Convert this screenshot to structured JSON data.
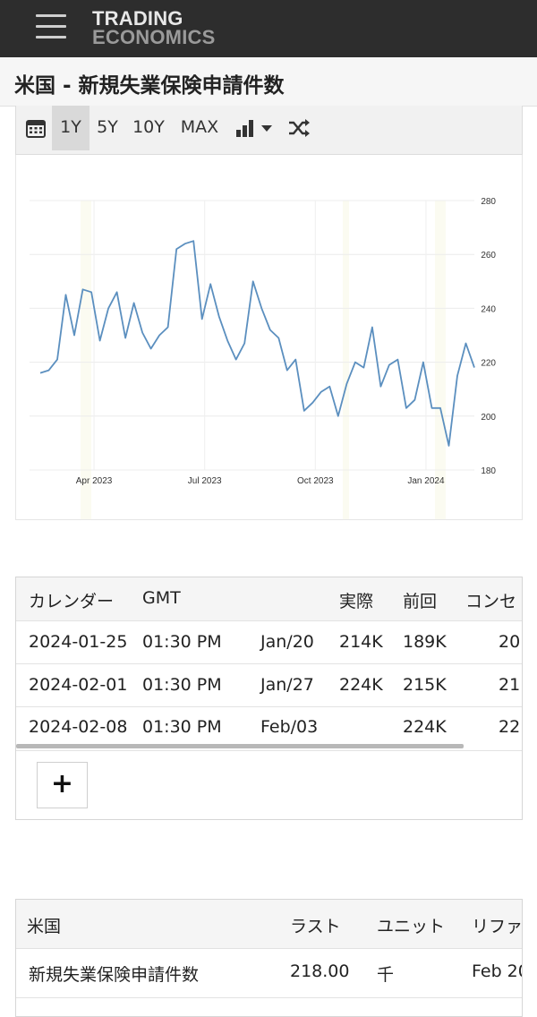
{
  "logo": {
    "line1": "TRADING",
    "line2": "ECONOMICS"
  },
  "page": {
    "title": "米国 - 新規失業保険申請件数"
  },
  "toolbar": {
    "ranges": [
      "1Y",
      "5Y",
      "10Y",
      "MAX"
    ],
    "active": "1Y"
  },
  "chart_data": {
    "type": "line",
    "title": "",
    "xlabel": "",
    "ylabel": "",
    "ylim": [
      180,
      280
    ],
    "yticks": [
      180,
      200,
      220,
      240,
      260,
      280
    ],
    "xticks": [
      "Apr 2023",
      "Jul 2023",
      "Oct 2023",
      "Jan 2024"
    ],
    "line_color": "#5b8fbf",
    "series": [
      {
        "name": "新規失業保険申請件数",
        "values": [
          216,
          217,
          221,
          245,
          230,
          247,
          246,
          228,
          240,
          246,
          229,
          242,
          231,
          225,
          230,
          233,
          262,
          264,
          265,
          236,
          249,
          237,
          228,
          221,
          227,
          250,
          240,
          232,
          229,
          217,
          221,
          202,
          205,
          209,
          211,
          200,
          212,
          220,
          218,
          233,
          211,
          219,
          221,
          203,
          206,
          220,
          203,
          203,
          189,
          215,
          227,
          218
        ]
      }
    ]
  },
  "calendar": {
    "headers": [
      "カレンダー",
      "GMT",
      "",
      "実際",
      "前回",
      "コンセ"
    ],
    "rows": [
      [
        "2024-01-25",
        "01:30 PM",
        "Jan/20",
        "214K",
        "189K",
        "20"
      ],
      [
        "2024-02-01",
        "01:30 PM",
        "Jan/27",
        "224K",
        "215K",
        "21"
      ],
      [
        "2024-02-08",
        "01:30 PM",
        "Feb/03",
        "",
        "224K",
        "22"
      ]
    ],
    "add_label": "+"
  },
  "summary": {
    "headers": [
      "米国",
      "ラスト",
      "ユニット",
      "リファ"
    ],
    "rows": [
      [
        "新規失業保険申請件数",
        "218.00",
        "千",
        "Feb 20"
      ]
    ]
  }
}
